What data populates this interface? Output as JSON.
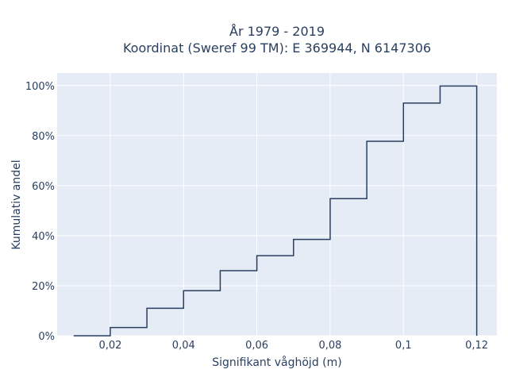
{
  "chart_data": {
    "type": "line",
    "title_line1": "År 1979 - 2019",
    "title_line2": "Koordinat (Sweref 99 TM): E 369944, N 6147306",
    "xlabel": "Signifikant våghöjd (m)",
    "ylabel": "Kumulativ andel",
    "xlim": [
      0.0055,
      0.1255
    ],
    "ylim": [
      0,
      1.05
    ],
    "x_ticks": [
      0.02,
      0.04,
      0.06,
      0.08,
      0.1,
      0.12
    ],
    "x_tick_labels": [
      "0,02",
      "0,04",
      "0,06",
      "0,08",
      "0,1",
      "0,12"
    ],
    "y_ticks": [
      0,
      0.2,
      0.4,
      0.6,
      0.8,
      1.0
    ],
    "y_tick_labels": [
      "0%",
      "20%",
      "40%",
      "60%",
      "80%",
      "100%"
    ],
    "grid": true,
    "colors": {
      "line": "#2a3f5f",
      "plot_bg": "#e5ecf6",
      "grid": "#ffffff"
    },
    "series": [
      {
        "x": [
          0.01,
          0.02,
          0.03,
          0.04,
          0.05,
          0.06,
          0.07,
          0.08,
          0.09,
          0.1,
          0.11,
          0.12
        ],
        "values": [
          0.0,
          0.033,
          0.11,
          0.18,
          0.26,
          0.32,
          0.385,
          0.548,
          0.777,
          0.93,
          0.998,
          0.0
        ]
      }
    ]
  }
}
